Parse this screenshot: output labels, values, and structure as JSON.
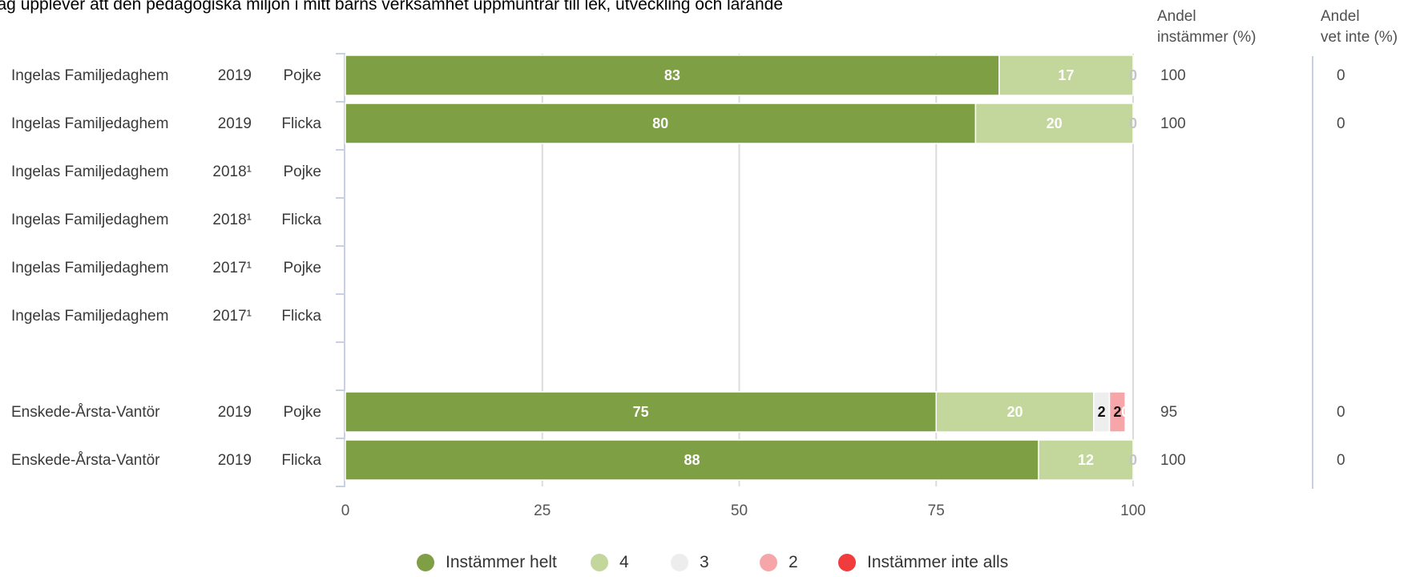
{
  "chart_data": {
    "type": "bar",
    "orientation": "horizontal",
    "stacked": true,
    "title": "Jag upplever att den pedagogiska miljön i mitt barns verksamhet uppmuntrar till lek, utveckling och lärande",
    "xlim": [
      0,
      100
    ],
    "x_ticks": [
      "0",
      "25",
      "50",
      "75",
      "100"
    ],
    "legend_position": "bottom",
    "grid": true,
    "series": [
      {
        "name": "Instämmer helt",
        "color": "#7f9f45"
      },
      {
        "name": "4",
        "color": "#c3d79d"
      },
      {
        "name": "3",
        "color": "#eeeeee"
      },
      {
        "name": "2",
        "color": "#f6a6a8"
      },
      {
        "name": "Instämmer inte alls",
        "color": "#f03c3c"
      }
    ],
    "rows": [
      {
        "unit": "Ingelas Familjedaghem",
        "year": "2019",
        "gender": "Pojke",
        "values": [
          83,
          17,
          0,
          null,
          null
        ],
        "labels": [
          "83",
          "17",
          "0",
          "",
          ""
        ],
        "andel_instammer": "100",
        "andel_vet_inte": "0"
      },
      {
        "unit": "Ingelas Familjedaghem",
        "year": "2019",
        "gender": "Flicka",
        "values": [
          80,
          20,
          0,
          null,
          null
        ],
        "labels": [
          "80",
          "20",
          "0",
          "",
          ""
        ],
        "andel_instammer": "100",
        "andel_vet_inte": "0"
      },
      {
        "unit": "Ingelas Familjedaghem",
        "year": "2018¹",
        "gender": "Pojke",
        "values": [
          null,
          null,
          null,
          null,
          null
        ],
        "labels": [
          "",
          "",
          "",
          "",
          ""
        ],
        "andel_instammer": "",
        "andel_vet_inte": ""
      },
      {
        "unit": "Ingelas Familjedaghem",
        "year": "2018¹",
        "gender": "Flicka",
        "values": [
          null,
          null,
          null,
          null,
          null
        ],
        "labels": [
          "",
          "",
          "",
          "",
          ""
        ],
        "andel_instammer": "",
        "andel_vet_inte": ""
      },
      {
        "unit": "Ingelas Familjedaghem",
        "year": "2017¹",
        "gender": "Pojke",
        "values": [
          null,
          null,
          null,
          null,
          null
        ],
        "labels": [
          "",
          "",
          "",
          "",
          ""
        ],
        "andel_instammer": "",
        "andel_vet_inte": ""
      },
      {
        "unit": "Ingelas Familjedaghem",
        "year": "2017¹",
        "gender": "Flicka",
        "values": [
          null,
          null,
          null,
          null,
          null
        ],
        "labels": [
          "",
          "",
          "",
          "",
          ""
        ],
        "andel_instammer": "",
        "andel_vet_inte": ""
      },
      {
        "spacer": true
      },
      {
        "unit": "Enskede-Årsta-Vantör",
        "year": "2019",
        "gender": "Pojke",
        "values": [
          75,
          20,
          2,
          2,
          0
        ],
        "labels": [
          "75",
          "20",
          "2",
          "2",
          "0"
        ],
        "andel_instammer": "95",
        "andel_vet_inte": "0"
      },
      {
        "unit": "Enskede-Årsta-Vantör",
        "year": "2019",
        "gender": "Flicka",
        "values": [
          88,
          12,
          0,
          null,
          null
        ],
        "labels": [
          "88",
          "12",
          "0",
          "",
          ""
        ],
        "andel_instammer": "100",
        "andel_vet_inte": "0"
      }
    ]
  },
  "columns": {
    "instammer_header": [
      "Andel",
      "instämmer (%)"
    ],
    "vet_inte_header": [
      "Andel",
      "vet inte (%)"
    ]
  }
}
